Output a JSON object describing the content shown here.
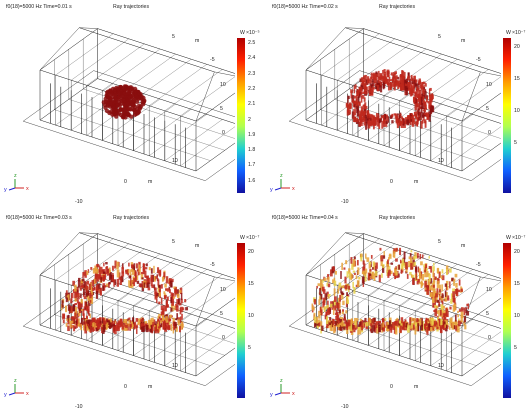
{
  "panels": [
    {
      "id": "p1",
      "title": "f0(18)=5000 Hz Time=0.01 s",
      "subtitle": "Ray trajectories",
      "unit": "W",
      "exp": "×10⁻⁵",
      "colorbar_ticks": [
        "2.5",
        "2.4",
        "2.3",
        "2.2",
        "2.1",
        "2",
        "1.9",
        "1.8",
        "1.7",
        "1.6"
      ],
      "axis_ticks": {
        "y_top": "5",
        "y_top2": "-5",
        "z1": "10",
        "z2": "5",
        "z3": "0",
        "x1": "10",
        "x2": "0",
        "x3": "-10",
        "m": "m"
      }
    },
    {
      "id": "p2",
      "title": "f0(18)=5000 Hz Time=0.02 s",
      "subtitle": "Ray trajectories",
      "unit": "W",
      "exp": "×10⁻⁷",
      "colorbar_ticks": [
        "20",
        "15",
        "10",
        "5"
      ],
      "axis_ticks": {
        "y_top": "5",
        "y_top2": "-5",
        "z1": "10",
        "z2": "5",
        "z3": "0",
        "x1": "10",
        "x2": "0",
        "x3": "-10",
        "m": "m"
      }
    },
    {
      "id": "p3",
      "title": "f0(18)=5000 Hz Time=0.03 s",
      "subtitle": "Ray trajectories",
      "unit": "W",
      "exp": "×10⁻⁷",
      "colorbar_ticks": [
        "20",
        "15",
        "10",
        "5"
      ],
      "axis_ticks": {
        "y_top": "5",
        "y_top2": "-5",
        "z1": "10",
        "z2": "5",
        "z3": "0",
        "x1": "10",
        "x2": "0",
        "x3": "-10",
        "m": "m"
      }
    },
    {
      "id": "p4",
      "title": "f0(18)=5000 Hz Time=0.04 s",
      "subtitle": "Ray trajectories",
      "unit": "W",
      "exp": "×10⁻⁷",
      "colorbar_ticks": [
        "20",
        "15",
        "10",
        "5"
      ],
      "axis_ticks": {
        "y_top": "5",
        "y_top2": "-5",
        "z1": "10",
        "z2": "5",
        "z3": "0",
        "x1": "10",
        "x2": "0",
        "x3": "-10",
        "m": "m"
      }
    }
  ],
  "triad": {
    "x": "x",
    "y": "y",
    "z": "z"
  },
  "colors": {
    "ray_dark": "#8a0e0e",
    "ray_mid": "#c0281c",
    "ray_warm": "#e8a23a",
    "ray_yellow": "#e8d24a",
    "wire": "#1a1a1a"
  }
}
